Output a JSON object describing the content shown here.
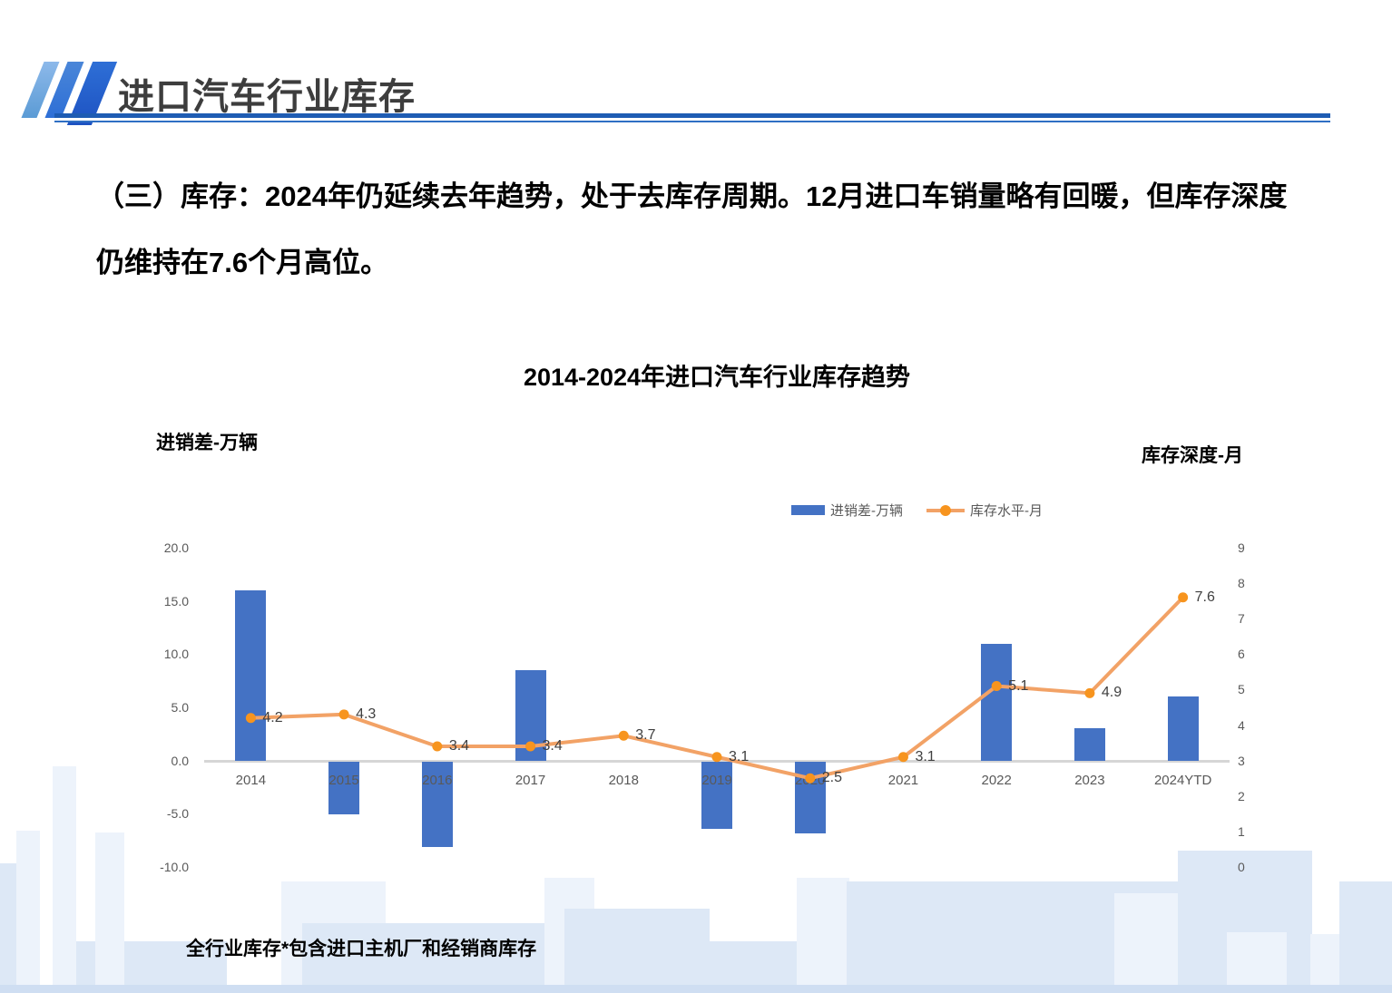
{
  "header": {
    "title": "进口汽车行业库存"
  },
  "body": {
    "line1": "（三）库存：2024年仍延续去年趋势，处于去库存周期。12月进口车销量略有回暖，但库存深度",
    "line2": "仍维持在7.6个月高位。"
  },
  "footnote": "全行业库存*包含进口主机厂和经销商库存",
  "chart_data": {
    "type": "bar+line",
    "title": "2014-2024年进口汽车行业库存趋势",
    "left_axis_title": "进销差-万辆",
    "right_axis_title": "库存深度-月",
    "categories": [
      "2014",
      "2015",
      "2016",
      "2017",
      "2018",
      "2019",
      "2020",
      "2021",
      "2022",
      "2023",
      "2024YTD"
    ],
    "series": [
      {
        "name": "进销差-万辆",
        "type": "bar",
        "axis": "left",
        "values": [
          16.0,
          -5.0,
          -8.0,
          8.5,
          0.0,
          -6.3,
          -6.8,
          0.0,
          11.0,
          3.0,
          6.0
        ],
        "color": "#4472C4"
      },
      {
        "name": "库存水平-月",
        "type": "line",
        "axis": "right",
        "values": [
          4.2,
          4.3,
          3.4,
          3.4,
          3.7,
          3.1,
          2.5,
          3.1,
          5.1,
          4.9,
          7.6
        ],
        "labels": [
          "4.2",
          "4.3",
          "3.4",
          "3.4",
          "3.7",
          "3.1",
          "2.5",
          "3.1",
          "5.1",
          "4.9",
          "7.6"
        ],
        "line_color": "#F2A266",
        "marker_color": "#F7941E"
      }
    ],
    "left_axis": {
      "ticks": [
        "20.0",
        "15.0",
        "10.0",
        "5.0",
        "0.0",
        "-5.0",
        "-10.0"
      ],
      "min": -10,
      "max": 20
    },
    "right_axis": {
      "ticks": [
        "9",
        "8",
        "7",
        "6",
        "5",
        "4",
        "3",
        "2",
        "1",
        "0"
      ],
      "min": 0,
      "max": 9
    },
    "legend": [
      {
        "label": "进销差-万辆",
        "type": "bar"
      },
      {
        "label": "库存水平-月",
        "type": "line"
      }
    ],
    "grid": false,
    "legend_position": "top-right-of-plot"
  }
}
